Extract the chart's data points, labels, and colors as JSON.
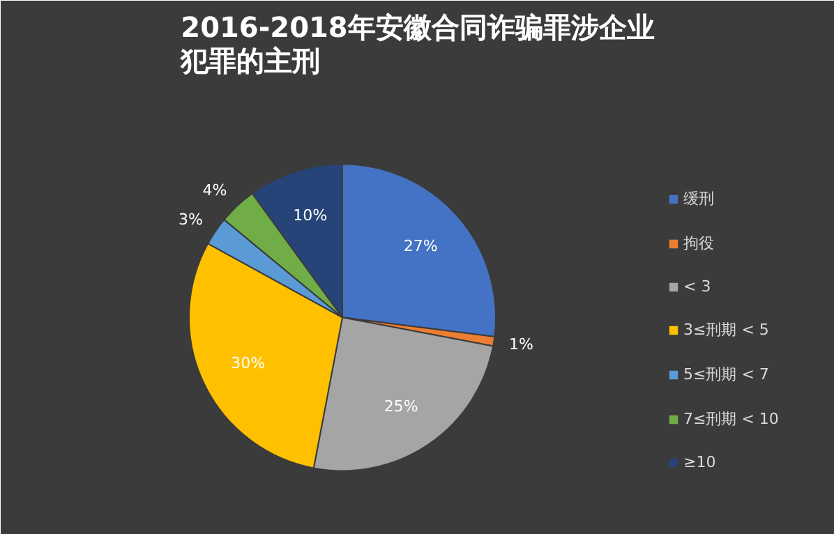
{
  "chart_data": {
    "type": "pie",
    "title": "2016-2018年安徽合同诈骗罪涉企业犯罪的主刑",
    "categories": [
      "缓刑",
      "拘役",
      "< 3",
      "3≤刑期 < 5",
      "5≤刑期 < 7",
      "7≤刑期 < 10",
      "≥10"
    ],
    "values": [
      27,
      1,
      25,
      30,
      3,
      4,
      10
    ],
    "colors": [
      "#4472c4",
      "#ed7d31",
      "#a5a5a5",
      "#ffc000",
      "#5b9bd5",
      "#70ad47",
      "#264478"
    ],
    "value_labels": [
      "27%",
      "1%",
      "25%",
      "30%",
      "3%",
      "4%",
      "10%"
    ],
    "legend": "right"
  }
}
